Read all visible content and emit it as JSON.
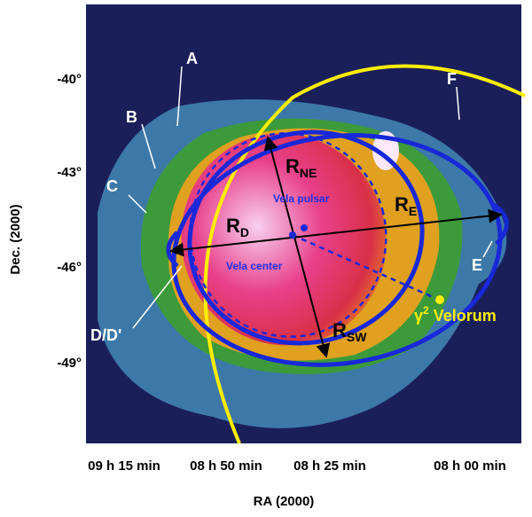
{
  "figure": {
    "y_axis": {
      "title": "Dec. (2000)",
      "ticks": [
        "-40°",
        "-43°",
        "-46°",
        "-49°"
      ]
    },
    "x_axis": {
      "title": "RA (2000)",
      "ticks": [
        "09 h 15 min",
        "08 h 50 min",
        "08 h 25 min",
        "08 h 00 min"
      ]
    },
    "regions": {
      "a": "A",
      "b": "B",
      "c": "C",
      "d": "D/D'",
      "e": "E",
      "f": "F"
    },
    "radii": {
      "ne": {
        "main": "R",
        "sub": "NE"
      },
      "d": {
        "main": "R",
        "sub": "D"
      },
      "e": {
        "main": "R",
        "sub": "E"
      },
      "sw": {
        "main": "R",
        "sub": "SW"
      }
    },
    "objects": {
      "pulsar": "Vela pulsar",
      "center": "Vela center",
      "gamma_symbol": "γ",
      "gamma_sup": "2",
      "gamma_name": " Velorum"
    }
  }
}
